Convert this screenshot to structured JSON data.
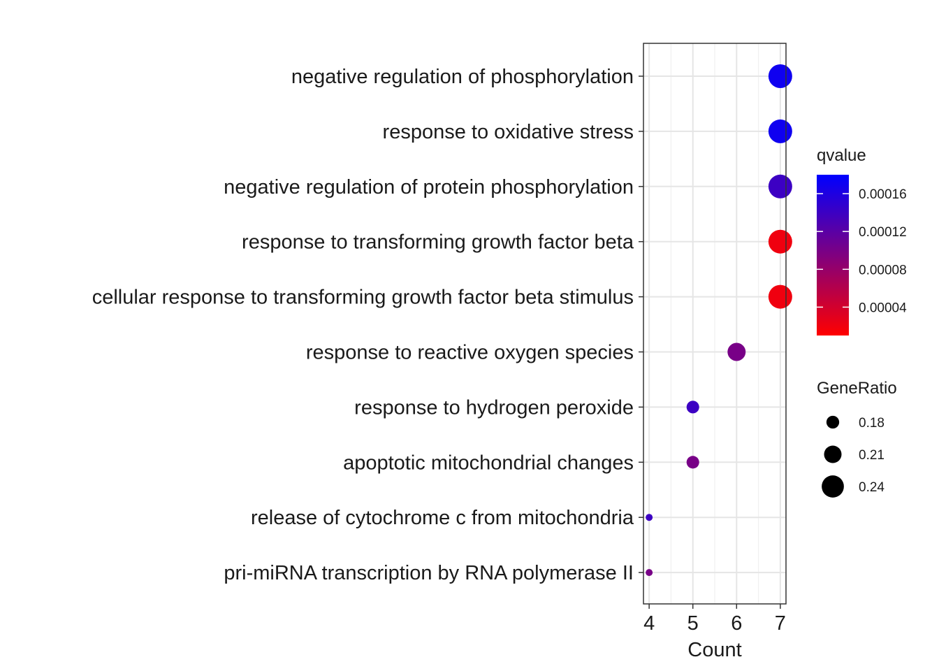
{
  "chart_data": {
    "type": "scatter",
    "xlabel": "Count",
    "ylabel": "",
    "xlim": [
      3.87,
      7.13
    ],
    "x_ticks": [
      4,
      5,
      6,
      7
    ],
    "grid": true,
    "legend_position": "right",
    "points": [
      {
        "category": "negative regulation of phosphorylation",
        "count": 7,
        "gene_ratio": 0.25,
        "qvalue": 0.00017
      },
      {
        "category": "response to oxidative stress",
        "count": 7,
        "gene_ratio": 0.25,
        "qvalue": 0.00017
      },
      {
        "category": "negative regulation of protein phosphorylation",
        "count": 7,
        "gene_ratio": 0.25,
        "qvalue": 0.00014
      },
      {
        "category": "response to transforming growth factor beta",
        "count": 7,
        "gene_ratio": 0.25,
        "qvalue": 2e-05
      },
      {
        "category": "cellular response to transforming growth factor beta stimulus",
        "count": 7,
        "gene_ratio": 0.25,
        "qvalue": 2e-05
      },
      {
        "category": "response to reactive oxygen species",
        "count": 6,
        "gene_ratio": 0.214,
        "qvalue": 0.0001
      },
      {
        "category": "response to hydrogen peroxide",
        "count": 5,
        "gene_ratio": 0.179,
        "qvalue": 0.00014
      },
      {
        "category": "apoptotic mitochondrial changes",
        "count": 5,
        "gene_ratio": 0.179,
        "qvalue": 0.0001
      },
      {
        "category": "release of cytochrome c from mitochondria",
        "count": 4,
        "gene_ratio": 0.143,
        "qvalue": 0.00014
      },
      {
        "category": "pri-miRNA transcription by RNA polymerase II",
        "count": 4,
        "gene_ratio": 0.143,
        "qvalue": 0.0001
      }
    ],
    "color_legend": {
      "title": "qvalue",
      "low_color": "#ff0000",
      "high_color": "#0000ff",
      "range": [
        1e-05,
        0.00018
      ],
      "ticks": [
        4e-05,
        8e-05,
        0.00012,
        0.00016
      ],
      "tick_labels": [
        "0.00004",
        "0.00008",
        "0.00012",
        "0.00016"
      ]
    },
    "size_legend": {
      "title": "GeneRatio",
      "range": [
        0.143,
        0.25
      ],
      "values": [
        0.18,
        0.21,
        0.24
      ],
      "labels": [
        "0.18",
        "0.21",
        "0.24"
      ]
    }
  }
}
